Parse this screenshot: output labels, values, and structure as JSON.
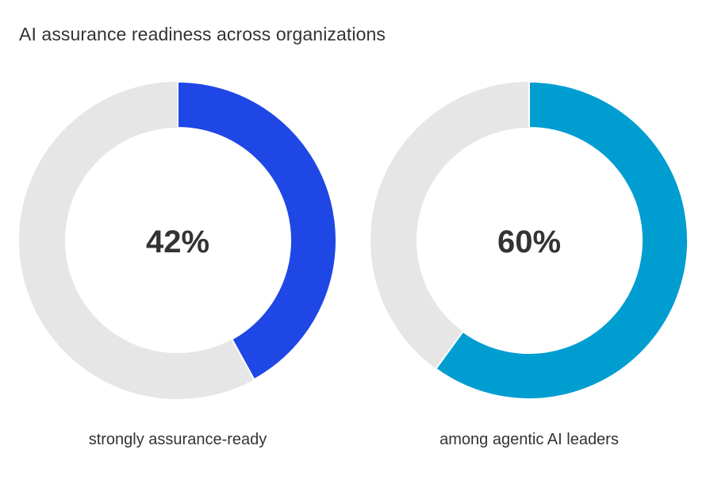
{
  "title": "AI assurance readiness across organizations",
  "chart_data": [
    {
      "type": "pie",
      "value": 42,
      "center_label": "42%",
      "caption": "strongly assurance-ready",
      "color": "#1f47e5",
      "track_color": "#e6e6e6"
    },
    {
      "type": "pie",
      "value": 60,
      "center_label": "60%",
      "caption": "among agentic AI leaders",
      "color": "#009dd1",
      "track_color": "#e6e6e6"
    }
  ]
}
